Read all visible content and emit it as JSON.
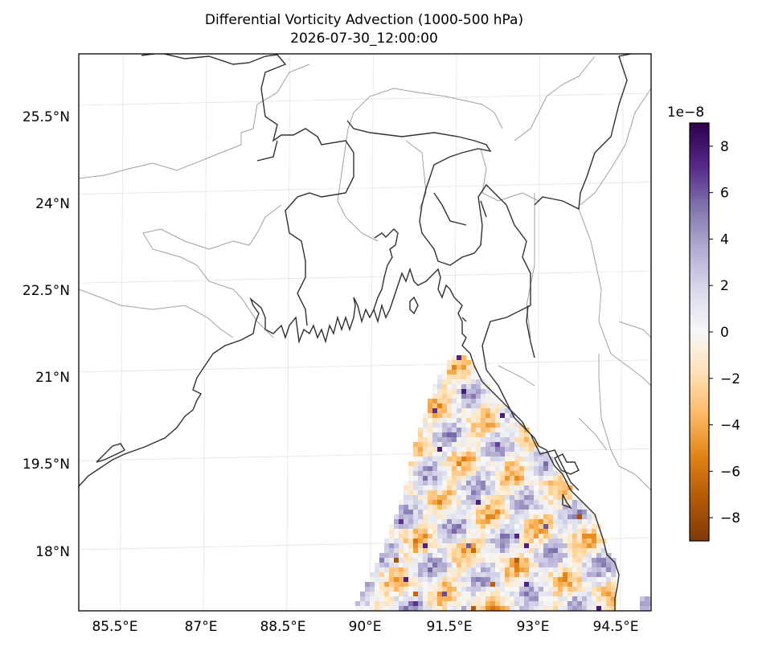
{
  "chart_data": {
    "type": "heatmap",
    "title": "Differential Vorticity Advection (1000-500 hPa)",
    "subtitle": "2026-07-30_12:00:00",
    "projection": "map",
    "lon_range": [
      84.7,
      95.0
    ],
    "lat_range": [
      16.9,
      26.3
    ],
    "x_ticks": [
      "85.5°E",
      "87°E",
      "88.5°E",
      "90°E",
      "91.5°E",
      "93°E",
      "94.5°E"
    ],
    "x_tick_values": [
      85.5,
      87,
      88.5,
      90,
      91.5,
      93,
      94.5
    ],
    "y_ticks": [
      "25.5°N",
      "24°N",
      "22.5°N",
      "21°N",
      "19.5°N",
      "18°N"
    ],
    "y_tick_values": [
      25.5,
      24,
      22.5,
      21,
      19.5,
      18
    ],
    "colorbar": {
      "label_exponent": "1e−8",
      "range": [
        -9,
        9
      ],
      "ticks": [
        "8",
        "6",
        "4",
        "2",
        "0",
        "−2",
        "−4",
        "−6",
        "−8"
      ],
      "tick_values": [
        8,
        6,
        4,
        2,
        0,
        -2,
        -4,
        -6,
        -8
      ],
      "colormap": "PuOr",
      "colors": [
        "#7f3b08",
        "#b35806",
        "#e08214",
        "#fdb863",
        "#fee0b6",
        "#f7f7f7",
        "#d8daeb",
        "#b2abd2",
        "#8073ac",
        "#542788",
        "#2d004b"
      ]
    },
    "grid": true,
    "data_region": "Bay of Bengal south of ~21.3°N, east of ~89.8°E; land masked",
    "field_description": "Small-scale alternating positive (purple) and negative (orange) streaks, magnitudes mostly within ±4e-8 with local extremes near ±8e-8"
  }
}
